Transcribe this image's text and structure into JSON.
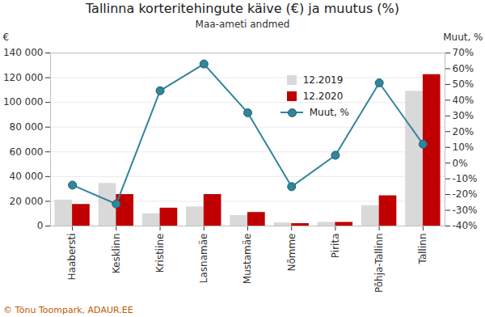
{
  "chart_data": {
    "type": "bar",
    "title": "Tallinna korteritehingute käive (€) ja muutus (%)",
    "subtitle": "Maa-ameti andmed",
    "caption": "© Tõnu Toompark, ADAUR.EE",
    "ylabel": "€",
    "y2label": "Muut, %",
    "categories": [
      "Haabersti",
      "Kesklinn",
      "Kristiine",
      "Lasnamäe",
      "Mustamäe",
      "Nõmme",
      "Pirita",
      "Põhja-Tallinn",
      "Tallinn"
    ],
    "series": [
      {
        "name": "12.2019",
        "type": "bar",
        "color": "#d9d9d9",
        "values": [
          21000,
          34500,
          10000,
          15500,
          8500,
          2500,
          3000,
          16500,
          109000
        ]
      },
      {
        "name": "12.2020",
        "type": "bar",
        "color": "#c00000",
        "values": [
          17500,
          25500,
          14500,
          25500,
          11000,
          2000,
          3000,
          24500,
          122500
        ]
      },
      {
        "name": "Muut, %",
        "type": "line",
        "axis": "y2",
        "color": "#31859c",
        "marker": "circle",
        "values": [
          -14,
          -26,
          46,
          63,
          32,
          -15,
          5,
          51,
          12
        ]
      }
    ],
    "ylim": [
      0,
      140000
    ],
    "yticks": [
      0,
      {
        "value": 20000,
        "label": "20 000"
      },
      {
        "value": 40000,
        "label": "40 000"
      },
      {
        "value": 60000,
        "label": "60 000"
      },
      {
        "value": 80000,
        "label": "80 000"
      },
      {
        "value": 100000,
        "label": "100 000"
      },
      {
        "value": 120000,
        "label": "120 000"
      },
      {
        "value": 140000,
        "label": "140 000"
      }
    ],
    "y2lim": [
      -40,
      70
    ],
    "y2ticks": [
      {
        "value": -40,
        "label": "-40%"
      },
      {
        "value": -30,
        "label": "-30%"
      },
      {
        "value": -20,
        "label": "-20%"
      },
      {
        "value": -10,
        "label": "-10%"
      },
      {
        "value": 0,
        "label": "0%"
      },
      {
        "value": 10,
        "label": "10%"
      },
      {
        "value": 20,
        "label": "20%"
      },
      {
        "value": 30,
        "label": "30%"
      },
      {
        "value": 40,
        "label": "40%"
      },
      {
        "value": 50,
        "label": "50%"
      },
      {
        "value": 60,
        "label": "60%"
      },
      {
        "value": 70,
        "label": "70%"
      }
    ],
    "grid": true,
    "legend": "top-right"
  }
}
